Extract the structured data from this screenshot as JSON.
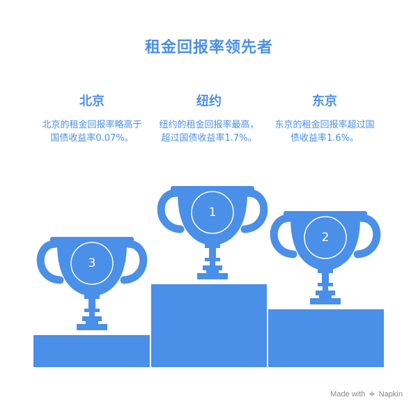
{
  "title": "租金回报率领先者",
  "columns": {
    "left": {
      "city": "北京",
      "description": "北京的租金回报率略高于国债收益率0.07%。",
      "rank": "3"
    },
    "center": {
      "city": "纽约",
      "description": "纽约的租金回报率最高，超过国债收益率1.7%。",
      "rank": "1"
    },
    "right": {
      "city": "东京",
      "description": "东京的租金回报率超过国债收益率1.6%。",
      "rank": "2"
    }
  },
  "colors": {
    "accent": "#4A8FE8",
    "trophy": "#4A8FE8",
    "podium": "#4A8FE8"
  },
  "watermark": {
    "prefix": "Made with",
    "icon": "napkin-logo-icon",
    "brand": "Napkin"
  }
}
